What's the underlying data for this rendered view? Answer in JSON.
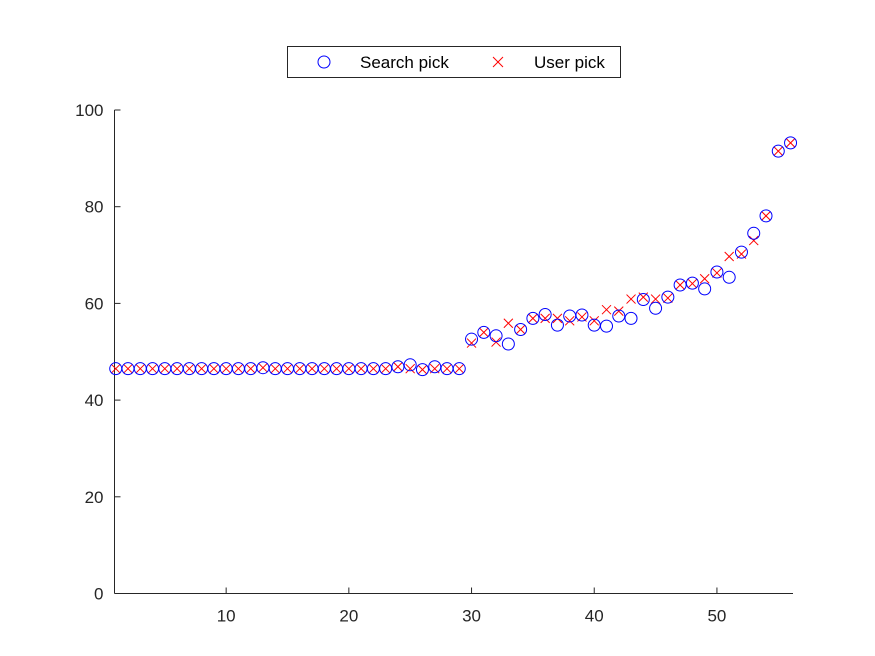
{
  "chart_data": {
    "type": "scatter",
    "x": [
      1,
      2,
      3,
      4,
      5,
      6,
      7,
      8,
      9,
      10,
      11,
      12,
      13,
      14,
      15,
      16,
      17,
      18,
      19,
      20,
      21,
      22,
      23,
      24,
      25,
      26,
      27,
      28,
      29,
      30,
      31,
      32,
      33,
      34,
      35,
      36,
      37,
      38,
      39,
      40,
      41,
      42,
      43,
      44,
      45,
      46,
      47,
      48,
      49,
      50,
      51,
      52,
      53,
      54,
      55,
      56
    ],
    "series": [
      {
        "name": "Search pick",
        "marker": "circle",
        "color": "#0000ff",
        "values": [
          46.5,
          46.5,
          46.5,
          46.5,
          46.5,
          46.5,
          46.5,
          46.5,
          46.5,
          46.5,
          46.5,
          46.5,
          46.7,
          46.5,
          46.5,
          46.5,
          46.5,
          46.5,
          46.5,
          46.5,
          46.5,
          46.5,
          46.5,
          46.9,
          47.3,
          46.3,
          46.9,
          46.5,
          46.5,
          52.6,
          54.0,
          53.3,
          51.6,
          54.6,
          56.9,
          57.7,
          55.5,
          57.4,
          57.6,
          55.5,
          55.3,
          57.4,
          56.9,
          60.8,
          59.0,
          61.3,
          63.8,
          64.2,
          63.0,
          66.5,
          65.4,
          70.6,
          74.5,
          78.1,
          91.5,
          93.2
        ]
      },
      {
        "name": "User pick",
        "marker": "x",
        "color": "#ff0000",
        "values": [
          46.5,
          46.5,
          46.5,
          46.5,
          46.5,
          46.5,
          46.5,
          46.5,
          46.5,
          46.5,
          46.5,
          46.5,
          46.7,
          46.5,
          46.5,
          46.5,
          46.5,
          46.5,
          46.5,
          46.5,
          46.5,
          46.5,
          46.5,
          46.9,
          46.5,
          46.3,
          46.5,
          46.5,
          46.5,
          51.8,
          54.0,
          52.0,
          55.9,
          54.6,
          56.9,
          56.9,
          56.9,
          56.4,
          57.2,
          56.4,
          58.7,
          58.4,
          60.9,
          61.3,
          60.9,
          61.1,
          63.8,
          64.1,
          65.1,
          66.3,
          69.7,
          70.2,
          73.0,
          78.1,
          91.5,
          93.2
        ]
      }
    ],
    "xlim": [
      0.9,
      56.2
    ],
    "ylim": [
      0,
      100
    ],
    "xticks": [
      10,
      20,
      30,
      40,
      50
    ],
    "yticks": [
      0,
      20,
      40,
      60,
      80,
      100
    ],
    "grid": false,
    "legend": "top, horizontal",
    "title": "",
    "xlabel": "",
    "ylabel": ""
  },
  "legend": {
    "search_label": "Search pick",
    "user_label": "User pick"
  }
}
